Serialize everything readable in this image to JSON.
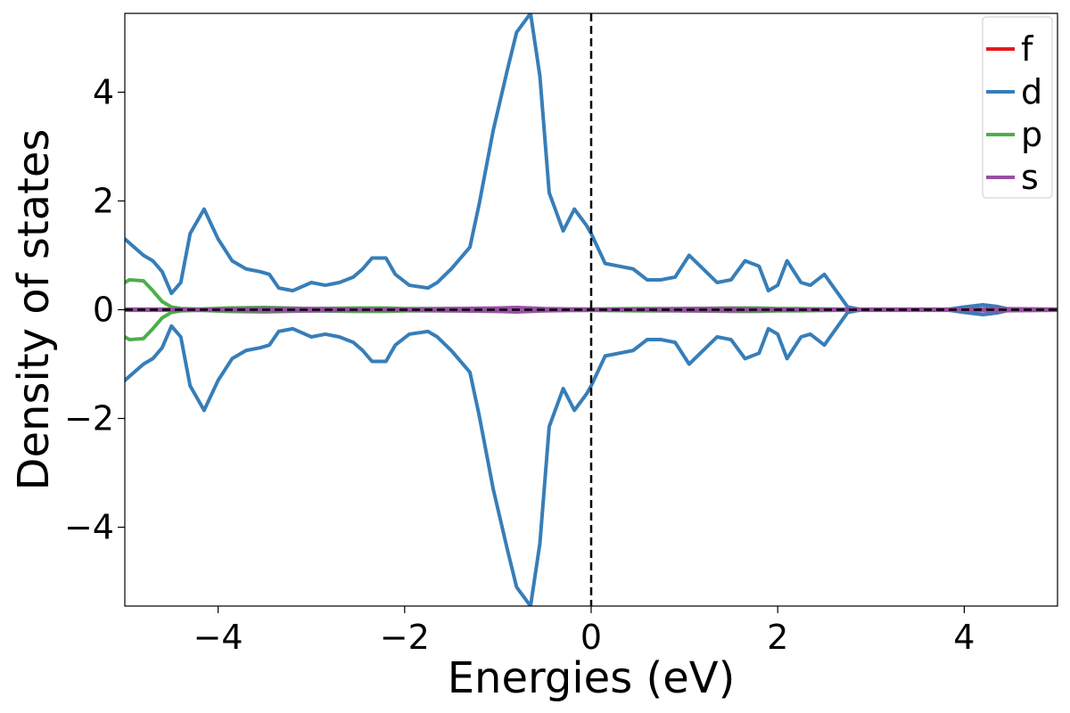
{
  "chart_data": {
    "type": "line",
    "xlabel": "Energies (eV)",
    "ylabel": "Density of states",
    "xlim": [
      -5,
      5
    ],
    "ylim": [
      -5.45,
      5.45
    ],
    "xticks": [
      -4,
      -2,
      0,
      2,
      4
    ],
    "yticks": [
      -4,
      -2,
      0,
      2,
      4
    ],
    "xtick_labels": [
      "−4",
      "−2",
      "0",
      "2",
      "4"
    ],
    "ytick_labels": [
      "−4",
      "−2",
      "0",
      "2",
      "4"
    ],
    "grid": false,
    "legend_position": "top-right",
    "fermi_level": 0,
    "mirrored_spin_channels": true,
    "series": [
      {
        "name": "f",
        "color": "#e41a1c",
        "x": [
          -5,
          5
        ],
        "values": [
          0,
          0
        ]
      },
      {
        "name": "d",
        "color": "#377eb8",
        "x": [
          -5.0,
          -4.8,
          -4.7,
          -4.6,
          -4.5,
          -4.4,
          -4.3,
          -4.15,
          -4.0,
          -3.85,
          -3.7,
          -3.55,
          -3.45,
          -3.35,
          -3.2,
          -3.0,
          -2.85,
          -2.7,
          -2.55,
          -2.45,
          -2.35,
          -2.2,
          -2.1,
          -1.95,
          -1.75,
          -1.65,
          -1.5,
          -1.3,
          -1.2,
          -1.05,
          -0.9,
          -0.8,
          -0.65,
          -0.55,
          -0.45,
          -0.3,
          -0.18,
          -0.05,
          0.0,
          0.15,
          0.3,
          0.45,
          0.6,
          0.75,
          0.9,
          1.05,
          1.2,
          1.35,
          1.5,
          1.65,
          1.8,
          1.9,
          2.0,
          2.1,
          2.25,
          2.35,
          2.5,
          2.75,
          2.9,
          3.8,
          4.0,
          4.2,
          4.35,
          4.5,
          5.0
        ],
        "values": [
          1.3,
          1.0,
          0.9,
          0.7,
          0.3,
          0.5,
          1.4,
          1.85,
          1.3,
          0.9,
          0.75,
          0.7,
          0.65,
          0.4,
          0.35,
          0.5,
          0.45,
          0.5,
          0.6,
          0.75,
          0.95,
          0.95,
          0.65,
          0.45,
          0.4,
          0.5,
          0.75,
          1.15,
          1.95,
          3.3,
          4.4,
          5.1,
          5.45,
          4.3,
          2.15,
          1.45,
          1.85,
          1.55,
          1.4,
          0.85,
          0.8,
          0.75,
          0.55,
          0.55,
          0.6,
          1.0,
          0.75,
          0.5,
          0.55,
          0.9,
          0.8,
          0.35,
          0.45,
          0.9,
          0.5,
          0.45,
          0.65,
          0.05,
          0.0,
          0.0,
          0.05,
          0.09,
          0.06,
          0.0,
          0.0
        ]
      },
      {
        "name": "p",
        "color": "#4daf4a",
        "x": [
          -5.0,
          -4.95,
          -4.8,
          -4.7,
          -4.6,
          -4.5,
          -4.4,
          -4.2,
          -3.9,
          -3.5,
          -3.0,
          -2.5,
          -2.2,
          -2.0,
          -1.5,
          -1.0,
          0.0,
          0.5,
          1.0,
          1.5,
          1.8,
          2.0,
          2.2,
          3.0,
          5.0
        ],
        "values": [
          0.5,
          0.55,
          0.53,
          0.35,
          0.15,
          0.05,
          0.02,
          0.01,
          0.03,
          0.04,
          0.02,
          0.03,
          0.03,
          0.02,
          0.02,
          0.01,
          0.01,
          0.02,
          0.02,
          0.03,
          0.03,
          0.02,
          0.02,
          0.0,
          0.0
        ]
      },
      {
        "name": "s",
        "color": "#984ea3",
        "x": [
          -5.0,
          -4.0,
          -3.5,
          -3.0,
          -2.5,
          -2.0,
          -1.5,
          -1.0,
          -0.8,
          -0.5,
          0.0,
          0.5,
          1.0,
          1.5,
          2.0,
          2.5,
          3.0,
          4.0,
          4.3,
          5.0
        ],
        "values": [
          0.01,
          0.01,
          0.02,
          0.02,
          0.01,
          0.01,
          0.02,
          0.03,
          0.04,
          0.02,
          0.01,
          0.01,
          0.02,
          0.02,
          0.01,
          0.01,
          0.01,
          0.01,
          0.02,
          0.01
        ]
      }
    ]
  }
}
